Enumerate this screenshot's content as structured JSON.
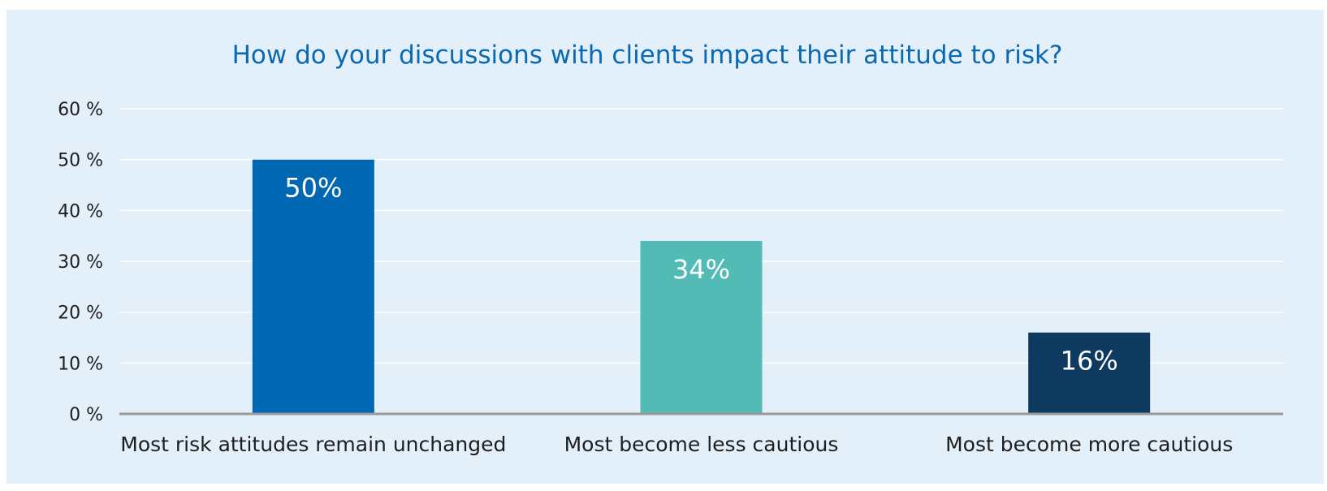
{
  "chart_data": {
    "type": "bar",
    "title": "How do your discussions with clients impact their attitude to risk?",
    "xlabel": "",
    "ylabel": "",
    "ylim": [
      0,
      60
    ],
    "yticks": [
      0,
      10,
      20,
      30,
      40,
      50,
      60
    ],
    "ytick_labels": [
      "0 %",
      "10 %",
      "20 %",
      "30 %",
      "40 %",
      "50 %",
      "60 %"
    ],
    "categories": [
      "Most risk attitudes remain unchanged",
      "Most become less cautious",
      "Most become more cautious"
    ],
    "values": [
      50,
      34,
      16
    ],
    "data_labels": [
      "50%",
      "34%",
      "16%"
    ],
    "colors": [
      "#0068b3",
      "#52bbb6",
      "#0e3a60"
    ],
    "grid": true,
    "legend": "none"
  },
  "style": {
    "background": "#e3eff9",
    "gridline_color": "#ffffff",
    "axis_color": "#9a9a9a",
    "title_color": "#0b69b1"
  }
}
